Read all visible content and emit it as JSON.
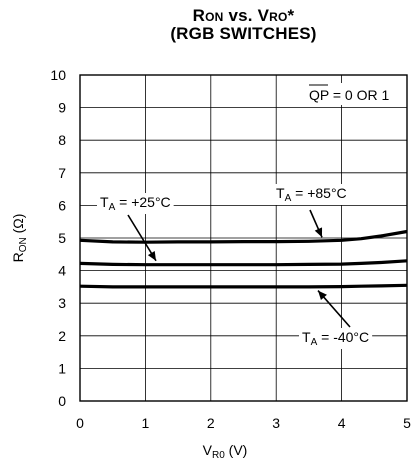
{
  "chart_data": {
    "type": "line",
    "title_main": "R",
    "title_on": "ON",
    "title_vs": " vs. V",
    "title_ro": "RO",
    "title_star": "*",
    "subtitle": "(RGB SWITCHES)",
    "xlabel_main": "V",
    "xlabel_sub": "R0",
    "xlabel_unit": " (V)",
    "ylabel_main": "R",
    "ylabel_sub": "ON",
    "ylabel_unit": " (Ω)",
    "xlim": [
      0,
      5
    ],
    "ylim": [
      0,
      10
    ],
    "xticks": [
      "0",
      "1",
      "2",
      "3",
      "4",
      "5"
    ],
    "yticks": [
      "0",
      "1",
      "2",
      "3",
      "4",
      "5",
      "6",
      "7",
      "8",
      "9",
      "10"
    ],
    "grid": true,
    "annotation_qp": "QP = 0 OR 1",
    "x": [
      0,
      0.5,
      1,
      1.5,
      2,
      2.5,
      3,
      3.5,
      4,
      4.3,
      4.6,
      5
    ],
    "series": [
      {
        "label_prefix": "T",
        "label_sub": "A",
        "label_suffix": " = +85°C",
        "values": [
          4.93,
          4.88,
          4.87,
          4.88,
          4.88,
          4.89,
          4.89,
          4.9,
          4.93,
          4.98,
          5.06,
          5.2
        ]
      },
      {
        "label_prefix": "T",
        "label_sub": "A",
        "label_suffix": " = +25°C",
        "values": [
          4.22,
          4.19,
          4.18,
          4.18,
          4.18,
          4.18,
          4.18,
          4.19,
          4.2,
          4.22,
          4.25,
          4.3
        ]
      },
      {
        "label_prefix": "T",
        "label_sub": "A",
        "label_suffix": " = -40°C",
        "values": [
          3.52,
          3.5,
          3.5,
          3.5,
          3.5,
          3.5,
          3.5,
          3.5,
          3.51,
          3.52,
          3.53,
          3.55
        ]
      }
    ]
  }
}
